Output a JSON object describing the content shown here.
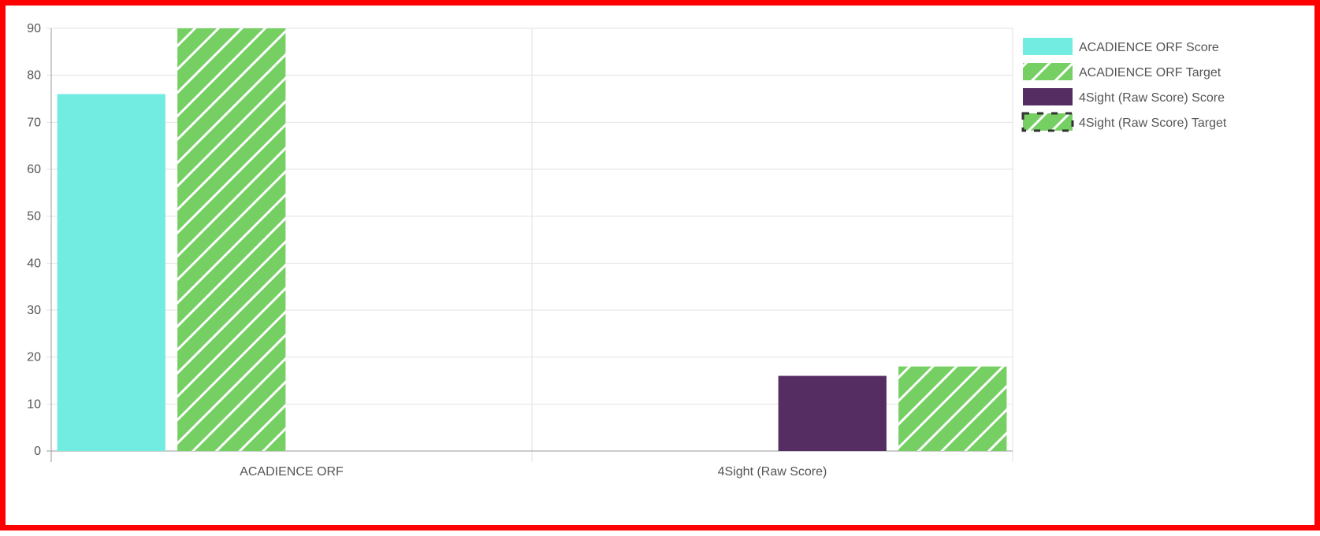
{
  "chart_data": {
    "type": "bar",
    "categories": [
      "ACADIENCE ORF",
      "4Sight (Raw Score)"
    ],
    "series": [
      {
        "name": "ACADIENCE ORF Score",
        "values": [
          76,
          null
        ],
        "color": "#72ebe1",
        "pattern": "solid"
      },
      {
        "name": "ACADIENCE ORF Target",
        "values": [
          90,
          null
        ],
        "color": "#75cf62",
        "pattern": "diagonal-stripes"
      },
      {
        "name": "4Sight (Raw Score) Score",
        "values": [
          null,
          16
        ],
        "color": "#552d62",
        "pattern": "solid"
      },
      {
        "name": "4Sight (Raw Score) Target",
        "values": [
          null,
          18
        ],
        "color": "#75cf62",
        "pattern": "diagonal-stripes"
      }
    ],
    "yticks": [
      0,
      10,
      20,
      30,
      40,
      50,
      60,
      70,
      80,
      90
    ],
    "ylim": [
      0,
      90
    ],
    "grid": true,
    "legend": "right",
    "frame_color": "#ff0000"
  }
}
